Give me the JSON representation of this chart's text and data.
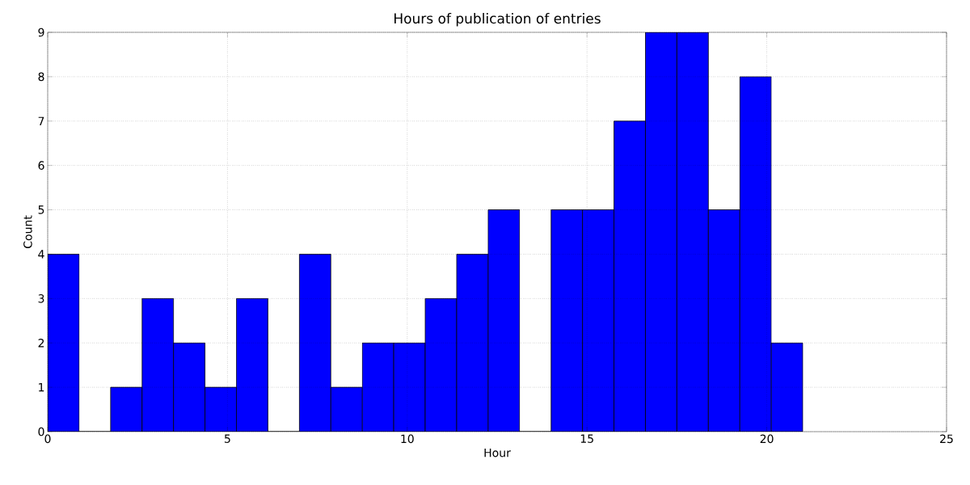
{
  "chart_data": {
    "type": "histogram",
    "title": "Hours of publication of entries",
    "xlabel": "Hour",
    "ylabel": "Count",
    "bins": [
      0,
      0.875,
      1.75,
      2.625,
      3.5,
      4.375,
      5.25,
      6.125,
      7,
      7.875,
      8.75,
      9.625,
      10.5,
      11.375,
      12.25,
      13.125,
      14,
      14.875,
      15.75,
      16.625,
      17.5,
      18.375,
      19.25,
      20.125,
      21
    ],
    "values": [
      4,
      0,
      1,
      3,
      2,
      1,
      3,
      0,
      4,
      1,
      2,
      2,
      3,
      4,
      5,
      0,
      5,
      5,
      7,
      9,
      9,
      5,
      8,
      2
    ],
    "color": "#0000ff",
    "xlim": [
      0,
      25
    ],
    "ylim": [
      0,
      9
    ],
    "xticks": [
      0,
      5,
      10,
      15,
      20,
      25
    ],
    "yticks": [
      0,
      1,
      2,
      3,
      4,
      5,
      6,
      7,
      8,
      9
    ],
    "grid": true
  }
}
